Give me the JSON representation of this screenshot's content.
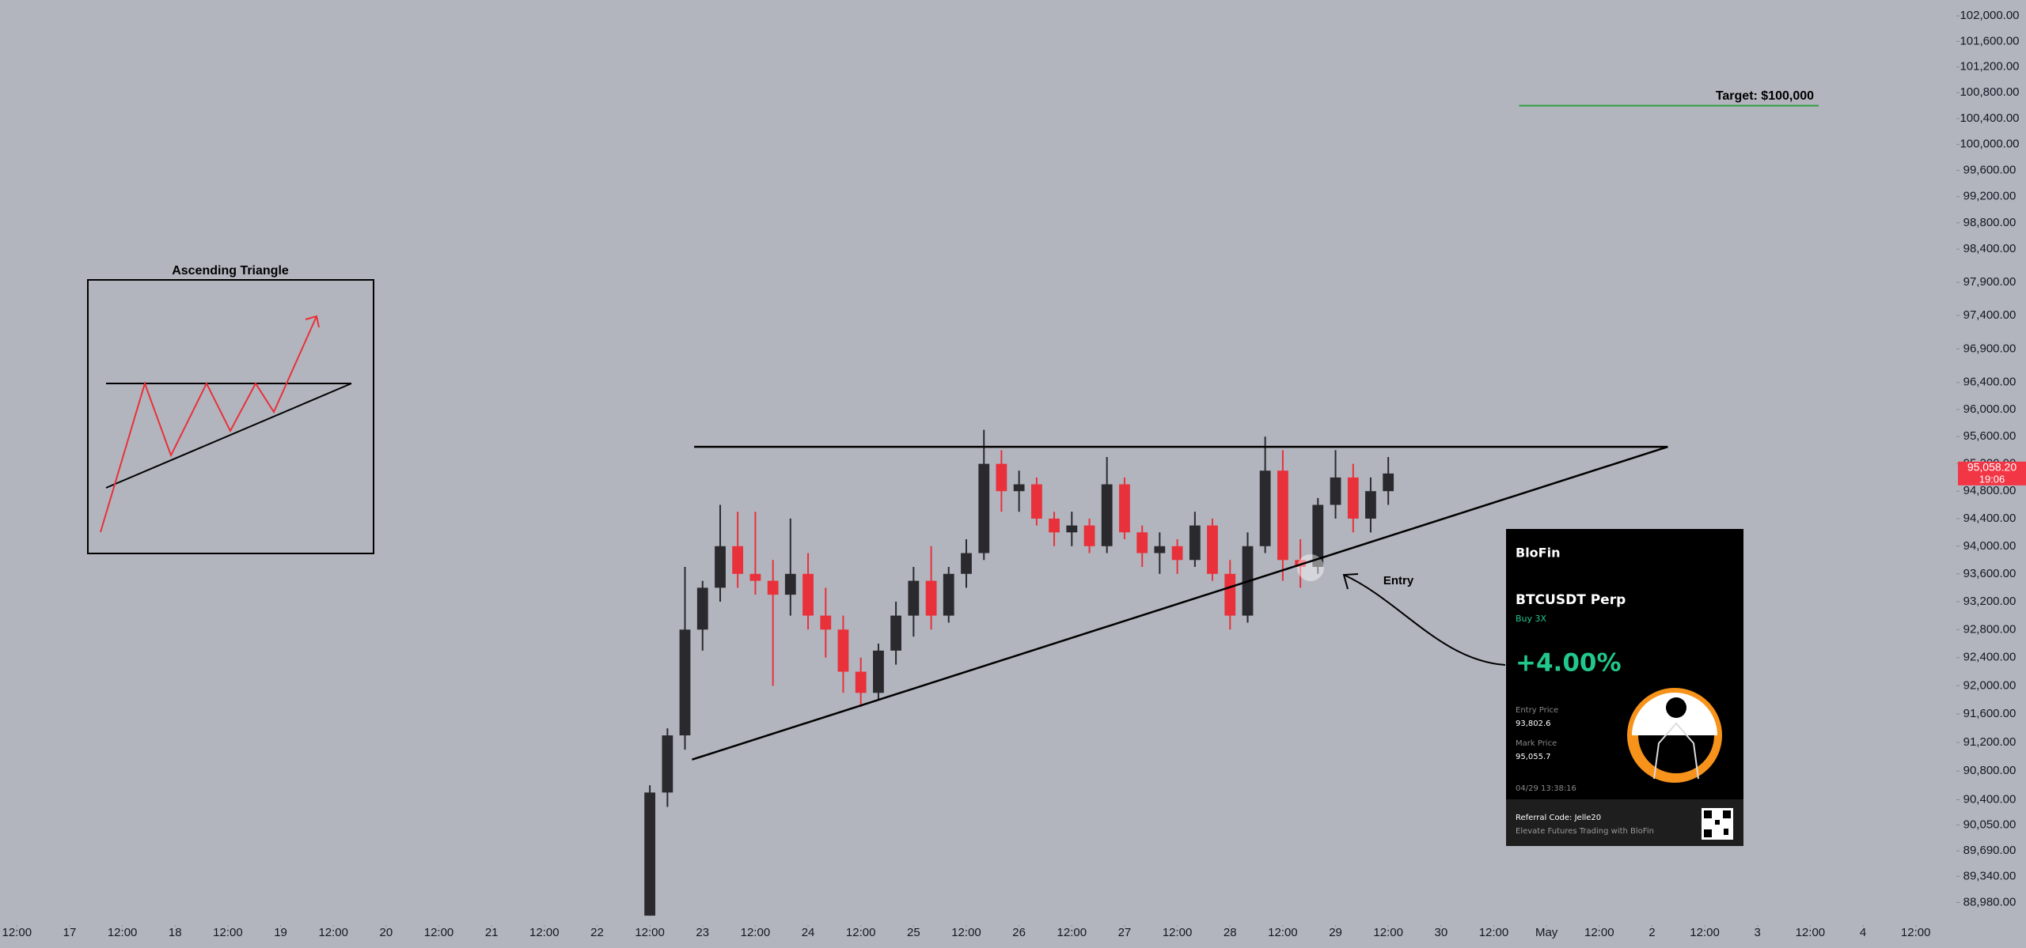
{
  "chart_data": {
    "type": "candlestick",
    "log_scale": true,
    "grid": false,
    "up_color": "#2a2a2e",
    "down_color": "#e8313a",
    "line_color": "#000000",
    "target_color": "#2e9e3e",
    "price_tag_color": "#f23645",
    "xlim": [
      16.34,
      34.84
    ],
    "ylim": [
      88790,
      102250
    ],
    "xticks": [
      {
        "value": 16.5,
        "label": "12:00"
      },
      17,
      {
        "value": 17.5,
        "label": "12:00"
      },
      18,
      {
        "value": 18.5,
        "label": "12:00"
      },
      19,
      {
        "value": 19.5,
        "label": "12:00"
      },
      20,
      {
        "value": 20.5,
        "label": "12:00"
      },
      21,
      {
        "value": 21.5,
        "label": "12:00"
      },
      22,
      {
        "value": 22.5,
        "label": "12:00"
      },
      23,
      {
        "value": 23.5,
        "label": "12:00"
      },
      24,
      {
        "value": 24.5,
        "label": "12:00"
      },
      25,
      {
        "value": 25.5,
        "label": "12:00"
      },
      26,
      {
        "value": 26.5,
        "label": "12:00"
      },
      27,
      {
        "value": 27.5,
        "label": "12:00"
      },
      28,
      {
        "value": 28.5,
        "label": "12:00"
      },
      29,
      {
        "value": 29.5,
        "label": "12:00"
      },
      30,
      {
        "value": 30.5,
        "label": "12:00"
      },
      {
        "value": 31,
        "label": "May"
      },
      {
        "value": 31.5,
        "label": "12:00"
      },
      {
        "value": 32,
        "label": "2"
      },
      {
        "value": 32.5,
        "label": "12:00"
      },
      {
        "value": 33,
        "label": "3"
      },
      {
        "value": 33.5,
        "label": "12:00"
      },
      {
        "value": 34,
        "label": "4"
      },
      {
        "value": 34.5,
        "label": "12:00"
      }
    ],
    "yticks": [
      {
        "value": 102000,
        "label": "102,000.00"
      },
      {
        "value": 101600,
        "label": "101,600.00"
      },
      {
        "value": 101200,
        "label": "101,200.00"
      },
      {
        "value": 100800,
        "label": "100,800.00"
      },
      {
        "value": 100400,
        "label": "100,400.00"
      },
      {
        "value": 100000,
        "label": "100,000.00"
      },
      {
        "value": 99600,
        "label": "99,600.00"
      },
      {
        "value": 99200,
        "label": "99,200.00"
      },
      {
        "value": 98800,
        "label": "98,800.00"
      },
      {
        "value": 98400,
        "label": "98,400.00"
      },
      {
        "value": 97900,
        "label": "97,900.00"
      },
      {
        "value": 97400,
        "label": "97,400.00"
      },
      {
        "value": 96900,
        "label": "96,900.00"
      },
      {
        "value": 96400,
        "label": "96,400.00"
      },
      {
        "value": 96000,
        "label": "96,000.00"
      },
      {
        "value": 95600,
        "label": "95,600.00"
      },
      {
        "value": 95200,
        "label": "95,200.00"
      },
      {
        "value": 94800,
        "label": "94,800.00"
      },
      {
        "value": 94400,
        "label": "94,400.00"
      },
      {
        "value": 94000,
        "label": "94,000.00"
      },
      {
        "value": 93600,
        "label": "93,600.00"
      },
      {
        "value": 93200,
        "label": "93,200.00"
      },
      {
        "value": 92800,
        "label": "92,800.00"
      },
      {
        "value": 92400,
        "label": "92,400.00"
      },
      {
        "value": 92000,
        "label": "92,000.00"
      },
      {
        "value": 91600,
        "label": "91,600.00"
      },
      {
        "value": 91200,
        "label": "91,200.00"
      },
      {
        "value": 90800,
        "label": "90,800.00"
      },
      {
        "value": 90400,
        "label": "90,400.00"
      },
      {
        "value": 90050,
        "label": "90,050.00"
      },
      {
        "value": 89690,
        "label": "89,690.00"
      },
      {
        "value": 89340,
        "label": "89,340.00"
      },
      {
        "value": 88980,
        "label": "88,980.00"
      }
    ],
    "x": [
      22.5,
      22.667,
      22.833,
      23,
      23.167,
      23.333,
      23.5,
      23.667,
      23.833,
      24,
      24.167,
      24.333,
      24.5,
      24.667,
      24.833,
      25,
      25.167,
      25.333,
      25.5,
      25.667,
      25.833,
      26,
      26.167,
      26.333,
      26.5,
      26.667,
      26.833,
      27,
      27.167,
      27.333,
      27.5,
      27.667,
      27.833,
      28,
      28.167,
      28.333,
      28.5,
      28.667,
      28.833,
      29,
      29.167,
      29.333,
      29.5
    ],
    "open": [
      88800,
      90500,
      91300,
      92800,
      93400,
      94000,
      93600,
      93500,
      93300,
      93600,
      93000,
      92800,
      92200,
      91900,
      92500,
      93000,
      93500,
      93000,
      93600,
      93900,
      95200,
      94800,
      94900,
      94400,
      94200,
      94300,
      94000,
      94900,
      94200,
      93900,
      94000,
      93800,
      94300,
      93600,
      93000,
      94000,
      95100,
      93800,
      93700,
      94600,
      95000,
      94400,
      94800
    ],
    "high": [
      90600,
      91400,
      93700,
      93500,
      94600,
      94500,
      94500,
      93800,
      94400,
      93900,
      93400,
      93000,
      92400,
      92600,
      93200,
      93700,
      94000,
      93700,
      94100,
      95700,
      95400,
      95100,
      95000,
      94500,
      94500,
      94400,
      95300,
      95000,
      94300,
      94200,
      94100,
      94500,
      94400,
      93800,
      94200,
      95600,
      95400,
      94100,
      94700,
      95400,
      95200,
      95000,
      95300
    ],
    "low": [
      88800,
      90300,
      91100,
      92500,
      93200,
      93400,
      93300,
      92000,
      93000,
      92800,
      92400,
      91900,
      91700,
      91800,
      92300,
      92700,
      92800,
      92900,
      93400,
      93800,
      94500,
      94500,
      94300,
      94000,
      94000,
      93900,
      93900,
      94100,
      93700,
      93600,
      93600,
      93700,
      93500,
      92800,
      92900,
      93900,
      93500,
      93400,
      93600,
      94400,
      94200,
      94200,
      94600
    ],
    "close": [
      90500,
      91300,
      92800,
      93400,
      94000,
      93600,
      93500,
      93300,
      93600,
      93000,
      92800,
      92200,
      91900,
      92500,
      93000,
      93500,
      93000,
      93600,
      93900,
      95200,
      94800,
      94900,
      94400,
      94200,
      94300,
      94000,
      94900,
      94200,
      93900,
      94000,
      93800,
      94300,
      93600,
      93000,
      94000,
      95100,
      93800,
      93700,
      94600,
      95000,
      94400,
      94800,
      95058.2
    ],
    "lines": [
      {
        "x": [
          22.92,
          32.15
        ],
        "y": [
          95450,
          95450
        ]
      },
      {
        "x": [
          22.9,
          32.15
        ],
        "y": [
          90960,
          95450
        ]
      }
    ],
    "target": {
      "label": "Target: $100,000",
      "x": [
        30.74,
        33.58
      ],
      "y": [
        100600,
        100600
      ]
    },
    "last_price": {
      "value": 95058.2,
      "label": "95,058.20"
    },
    "countdown": "19:06",
    "inset_title": "Ascending Triangle",
    "entry_label": "Entry",
    "card": {
      "brand": "BloFin",
      "pair": "BTCUSDT Perp",
      "side": "Buy 3X",
      "pnl": "+4.00%",
      "entry_price_label": "Entry Price",
      "entry_price": "93,802.6",
      "mark_price_label": "Mark Price",
      "mark_price": "95,055.7",
      "time": "04/29 13:38:16",
      "referral": "Referral Code: Jelle20",
      "slogan": "Elevate Futures Trading with BloFin"
    }
  }
}
